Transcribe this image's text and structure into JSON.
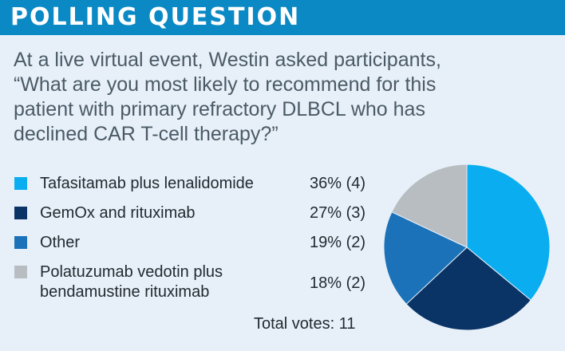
{
  "header": {
    "title": "POLLING QUESTION"
  },
  "question": {
    "lines": [
      "At a live virtual event, Westin asked participants,",
      "“What are you most likely to recommend for this",
      "patient with primary refractory DLBCL who has",
      "declined CAR T-cell therapy?”"
    ]
  },
  "legend": {
    "items": [
      {
        "lines": [
          "Tafasitamab plus lenalidomide"
        ],
        "value": "36% (4)",
        "color": "#0aaef0"
      },
      {
        "lines": [
          "GemOx and rituximab"
        ],
        "value": "27% (3)",
        "color": "#0a3366"
      },
      {
        "lines": [
          "Other"
        ],
        "value": "19% (2)",
        "color": "#1c72b8"
      },
      {
        "lines": [
          "Polatuzumab vedotin plus",
          "bendamustine rituximab"
        ],
        "value": "18% (2)",
        "color": "#b8bdc2"
      }
    ]
  },
  "total": "Total votes: 11",
  "chart_data": {
    "type": "pie",
    "categories": [
      "Tafasitamab plus lenalidomide",
      "GemOx and rituximab",
      "Other",
      "Polatuzumab vedotin plus bendamustine rituximab"
    ],
    "values": [
      36,
      27,
      19,
      18
    ],
    "votes": [
      4,
      3,
      2,
      2
    ],
    "colors": [
      "#0aaef0",
      "#0a3366",
      "#1c72b8",
      "#b8bdc2"
    ],
    "legend_position": "left"
  }
}
